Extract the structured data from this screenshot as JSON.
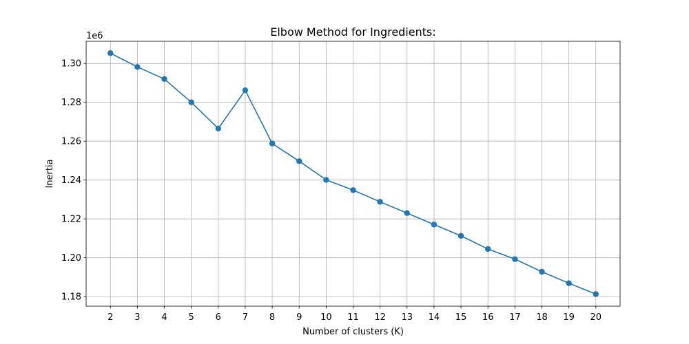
{
  "chart_data": {
    "type": "line",
    "title": "Elbow Method for Ingredients:",
    "xlabel": "Number of clusters (K)",
    "ylabel": "Inertia",
    "y_offset_label": "1e6",
    "x": [
      2,
      3,
      4,
      5,
      6,
      7,
      8,
      9,
      10,
      11,
      12,
      13,
      14,
      15,
      16,
      17,
      18,
      19,
      20
    ],
    "series": [
      {
        "values": [
          1.3053,
          1.2982,
          1.292,
          1.28,
          1.2665,
          1.2862,
          1.2588,
          1.2497,
          1.2401,
          1.2348,
          1.2288,
          1.223,
          1.2171,
          1.2113,
          1.2045,
          1.1993,
          1.1928,
          1.1869,
          1.1813
        ],
        "color": "#1f77b4",
        "marker": "circle"
      }
    ],
    "x_ticks": [
      "2",
      "3",
      "4",
      "5",
      "6",
      "7",
      "8",
      "9",
      "10",
      "11",
      "12",
      "13",
      "14",
      "15",
      "16",
      "17",
      "18",
      "19",
      "20"
    ],
    "y_ticks": [
      1.18,
      1.2,
      1.22,
      1.24,
      1.26,
      1.28,
      1.3
    ],
    "y_tick_labels": [
      "1.18",
      "1.20",
      "1.22",
      "1.24",
      "1.26",
      "1.28",
      "1.30"
    ],
    "xlim": [
      1.1,
      20.9
    ],
    "ylim": [
      1.1751,
      1.3114
    ],
    "grid": true,
    "legend": false
  }
}
